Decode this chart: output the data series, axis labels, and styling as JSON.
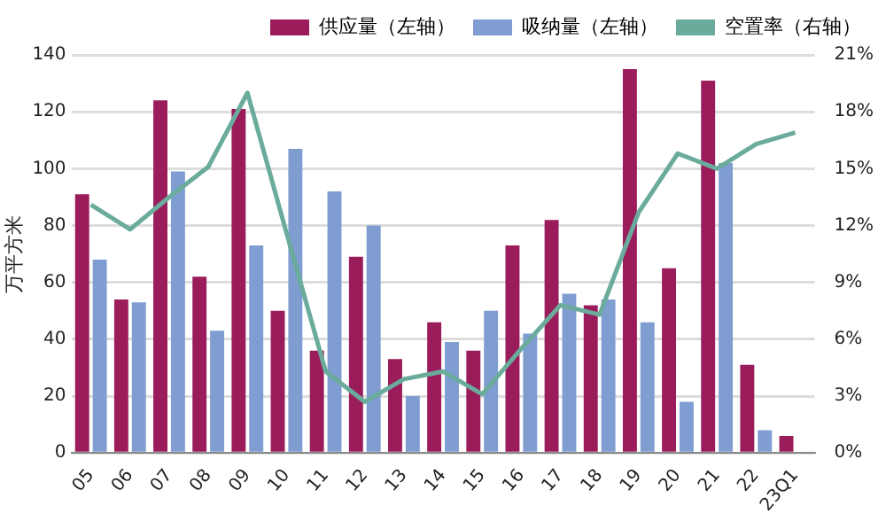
{
  "chart_data": {
    "type": "bar",
    "ylabel": "万平方米",
    "categories": [
      "05",
      "06",
      "07",
      "08",
      "09",
      "10",
      "11",
      "12",
      "13",
      "14",
      "15",
      "16",
      "17",
      "18",
      "19",
      "20",
      "21",
      "22",
      "23Q1"
    ],
    "series": [
      {
        "name": "供应量（左轴）",
        "color": "#9b1c5a",
        "values": [
          91,
          54,
          124,
          62,
          121,
          50,
          36,
          69,
          33,
          46,
          36,
          73,
          82,
          52,
          135,
          65,
          131,
          31,
          6
        ]
      },
      {
        "name": "吸纳量（左轴）",
        "color": "#7f9dd1",
        "values": [
          68,
          53,
          99,
          43,
          73,
          107,
          92,
          80,
          20,
          39,
          50,
          42,
          56,
          54,
          46,
          18,
          102,
          8,
          0
        ]
      },
      {
        "name": "空置率（右轴）",
        "type": "line",
        "axis": "y2",
        "color": "#6aab9c",
        "values": [
          13.1,
          11.8,
          13.5,
          15.1,
          19.0,
          11.6,
          4.3,
          2.7,
          3.9,
          4.3,
          3.1,
          5.5,
          7.8,
          7.3,
          12.7,
          15.8,
          15.0,
          16.3,
          16.9
        ]
      }
    ],
    "ylim": [
      0,
      140
    ],
    "yticks": [
      0,
      20,
      40,
      60,
      80,
      100,
      120,
      140
    ],
    "y2lim": [
      0,
      21
    ],
    "y2ticks": [
      {
        "value": 0,
        "label": "0%"
      },
      {
        "value": 3,
        "label": "3%"
      },
      {
        "value": 6,
        "label": "6%"
      },
      {
        "value": 9,
        "label": "9%"
      },
      {
        "value": 12,
        "label": "12%"
      },
      {
        "value": 15,
        "label": "15%"
      },
      {
        "value": 18,
        "label": "18%"
      },
      {
        "value": 21,
        "label": "21%"
      }
    ],
    "grid": "y",
    "legend": "top right",
    "marker": "none"
  }
}
